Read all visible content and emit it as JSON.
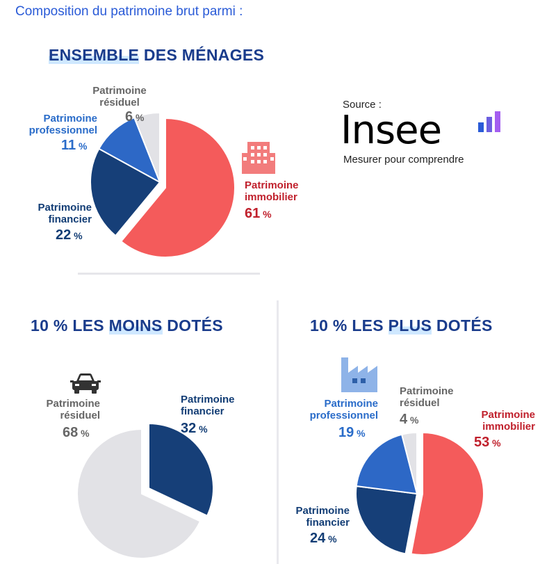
{
  "heading": "Composition du patrimoine brut parmi :",
  "sections": [
    {
      "title_a": "ENSEMBLE",
      "title_b": " DES MÉNAGES"
    },
    {
      "title_a": "10 % LES ",
      "title_h": "MOINS",
      "title_b": " DOTÉS"
    },
    {
      "title_a": "10 % LES ",
      "title_h": "PLUS",
      "title_b": " DOTÉS"
    }
  ],
  "source": {
    "label": "Source :",
    "logo_text": "Insee",
    "tagline": "Mesurer pour comprendre"
  },
  "icons": {
    "building": "building-icon",
    "car": "car-icon",
    "factory": "factory-icon"
  },
  "colors": {
    "immobilier": "#f45b5b",
    "financier": "#163f78",
    "professionnel": "#2d68c6",
    "residuel": "#e2e2e6"
  },
  "pct_sign": " %",
  "chart_data": [
    {
      "type": "pie",
      "title": "ENSEMBLE DES MÉNAGES",
      "slices": [
        {
          "name": "Patrimoine immobilier",
          "line1": "Patrimoine",
          "line2": "immobilier",
          "value": 61
        },
        {
          "name": "Patrimoine financier",
          "line1": "Patrimoine",
          "line2": "financier",
          "value": 22
        },
        {
          "name": "Patrimoine professionnel",
          "line1": "Patrimoine",
          "line2": "professionnel",
          "value": 11
        },
        {
          "name": "Patrimoine résiduel",
          "line1": "Patrimoine",
          "line2": "résiduel",
          "value": 6
        }
      ]
    },
    {
      "type": "pie",
      "title": "10 % LES MOINS DOTÉS",
      "slices": [
        {
          "name": "Patrimoine financier",
          "line1": "Patrimoine",
          "line2": "financier",
          "value": 32
        },
        {
          "name": "Patrimoine résiduel",
          "line1": "Patrimoine",
          "line2": "résiduel",
          "value": 68
        }
      ]
    },
    {
      "type": "pie",
      "title": "10 % LES PLUS DOTÉS",
      "slices": [
        {
          "name": "Patrimoine immobilier",
          "line1": "Patrimoine",
          "line2": "immobilier",
          "value": 53
        },
        {
          "name": "Patrimoine financier",
          "line1": "Patrimoine",
          "line2": "financier",
          "value": 24
        },
        {
          "name": "Patrimoine professionnel",
          "line1": "Patrimoine",
          "line2": "professionnel",
          "value": 19
        },
        {
          "name": "Patrimoine résiduel",
          "line1": "Patrimoine",
          "line2": "résiduel",
          "value": 4
        }
      ]
    }
  ]
}
